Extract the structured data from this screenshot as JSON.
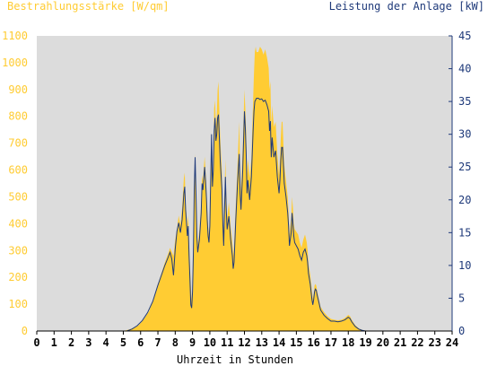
{
  "chart_data": {
    "type": "area",
    "left_axis": {
      "title": "Bestrahlungsstärke [W/qm]",
      "range": [
        0,
        1100
      ],
      "ticks": [
        0,
        100,
        200,
        300,
        400,
        500,
        600,
        700,
        800,
        900,
        1000,
        1100
      ],
      "color": "#FFCC33"
    },
    "right_axis": {
      "title": "Leistung der Anlage [kW]",
      "range": [
        0,
        45
      ],
      "ticks": [
        0,
        5,
        10,
        15,
        20,
        25,
        30,
        35,
        40,
        45
      ],
      "color": "#1F3A7A"
    },
    "x_axis": {
      "title": "Uhrzeit in Stunden",
      "range": [
        0,
        24
      ],
      "ticks": [
        0,
        1,
        2,
        3,
        4,
        5,
        6,
        7,
        8,
        9,
        10,
        11,
        12,
        13,
        14,
        15,
        16,
        17,
        18,
        19,
        20,
        21,
        22,
        23,
        24
      ]
    },
    "plot_background": "#DCDCDC",
    "series": [
      {
        "kind": "area",
        "axis": "left",
        "color": "#FFCC33",
        "points": [
          [
            0,
            0
          ],
          [
            5.0,
            0
          ],
          [
            5.3,
            5
          ],
          [
            5.6,
            12
          ],
          [
            5.9,
            22
          ],
          [
            6.2,
            45
          ],
          [
            6.5,
            75
          ],
          [
            6.8,
            130
          ],
          [
            7.0,
            175
          ],
          [
            7.2,
            215
          ],
          [
            7.4,
            255
          ],
          [
            7.6,
            290
          ],
          [
            7.7,
            310
          ],
          [
            7.9,
            280
          ],
          [
            8.0,
            340
          ],
          [
            8.1,
            380
          ],
          [
            8.2,
            430
          ],
          [
            8.3,
            395
          ],
          [
            8.4,
            460
          ],
          [
            8.5,
            570
          ],
          [
            8.55,
            590
          ],
          [
            8.6,
            480
          ],
          [
            8.7,
            390
          ],
          [
            8.75,
            430
          ],
          [
            8.8,
            330
          ],
          [
            8.85,
            250
          ],
          [
            8.9,
            170
          ],
          [
            8.95,
            110
          ],
          [
            9.0,
            160
          ],
          [
            9.05,
            280
          ],
          [
            9.1,
            520
          ],
          [
            9.15,
            660
          ],
          [
            9.2,
            530
          ],
          [
            9.25,
            390
          ],
          [
            9.3,
            320
          ],
          [
            9.4,
            380
          ],
          [
            9.5,
            470
          ],
          [
            9.55,
            580
          ],
          [
            9.6,
            560
          ],
          [
            9.7,
            650
          ],
          [
            9.75,
            600
          ],
          [
            9.8,
            540
          ],
          [
            9.85,
            450
          ],
          [
            9.9,
            390
          ],
          [
            9.95,
            360
          ],
          [
            10.0,
            420
          ],
          [
            10.05,
            590
          ],
          [
            10.1,
            680
          ],
          [
            10.15,
            540
          ],
          [
            10.2,
            600
          ],
          [
            10.25,
            830
          ],
          [
            10.3,
            860
          ],
          [
            10.35,
            770
          ],
          [
            10.4,
            800
          ],
          [
            10.45,
            900
          ],
          [
            10.5,
            930
          ],
          [
            10.55,
            820
          ],
          [
            10.6,
            720
          ],
          [
            10.7,
            590
          ],
          [
            10.75,
            450
          ],
          [
            10.8,
            360
          ],
          [
            10.85,
            510
          ],
          [
            10.9,
            640
          ],
          [
            10.95,
            500
          ],
          [
            11.0,
            420
          ],
          [
            11.1,
            480
          ],
          [
            11.2,
            390
          ],
          [
            11.3,
            330
          ],
          [
            11.35,
            280
          ],
          [
            11.4,
            320
          ],
          [
            11.5,
            470
          ],
          [
            11.6,
            620
          ],
          [
            11.7,
            780
          ],
          [
            11.75,
            600
          ],
          [
            11.8,
            520
          ],
          [
            11.9,
            680
          ],
          [
            12.0,
            900
          ],
          [
            12.05,
            830
          ],
          [
            12.1,
            740
          ],
          [
            12.15,
            580
          ],
          [
            12.2,
            640
          ],
          [
            12.3,
            570
          ],
          [
            12.4,
            640
          ],
          [
            12.45,
            750
          ],
          [
            12.5,
            860
          ],
          [
            12.55,
            960
          ],
          [
            12.6,
            1040
          ],
          [
            12.65,
            1060
          ],
          [
            12.7,
            1040
          ],
          [
            12.8,
            1040
          ],
          [
            12.9,
            1060
          ],
          [
            13.0,
            1050
          ],
          [
            13.1,
            1030
          ],
          [
            13.2,
            1050
          ],
          [
            13.3,
            1020
          ],
          [
            13.4,
            980
          ],
          [
            13.45,
            900
          ],
          [
            13.5,
            930
          ],
          [
            13.55,
            760
          ],
          [
            13.6,
            840
          ],
          [
            13.7,
            760
          ],
          [
            13.8,
            780
          ],
          [
            13.9,
            660
          ],
          [
            14.0,
            580
          ],
          [
            14.05,
            640
          ],
          [
            14.1,
            720
          ],
          [
            14.15,
            780
          ],
          [
            14.2,
            780
          ],
          [
            14.25,
            700
          ],
          [
            14.3,
            620
          ],
          [
            14.4,
            560
          ],
          [
            14.5,
            500
          ],
          [
            14.55,
            440
          ],
          [
            14.6,
            360
          ],
          [
            14.7,
            420
          ],
          [
            14.75,
            500
          ],
          [
            14.8,
            460
          ],
          [
            14.85,
            400
          ],
          [
            14.9,
            380
          ],
          [
            15.0,
            370
          ],
          [
            15.1,
            360
          ],
          [
            15.2,
            330
          ],
          [
            15.3,
            310
          ],
          [
            15.4,
            340
          ],
          [
            15.5,
            360
          ],
          [
            15.6,
            330
          ],
          [
            15.65,
            300
          ],
          [
            15.7,
            250
          ],
          [
            15.8,
            210
          ],
          [
            15.85,
            180
          ],
          [
            15.9,
            150
          ],
          [
            15.95,
            120
          ],
          [
            16.0,
            140
          ],
          [
            16.05,
            170
          ],
          [
            16.1,
            175
          ],
          [
            16.15,
            170
          ],
          [
            16.2,
            150
          ],
          [
            16.3,
            120
          ],
          [
            16.4,
            90
          ],
          [
            16.6,
            70
          ],
          [
            16.8,
            55
          ],
          [
            17.0,
            45
          ],
          [
            17.2,
            42
          ],
          [
            17.4,
            40
          ],
          [
            17.6,
            42
          ],
          [
            17.8,
            48
          ],
          [
            18.0,
            60
          ],
          [
            18.1,
            55
          ],
          [
            18.2,
            42
          ],
          [
            18.4,
            22
          ],
          [
            18.6,
            10
          ],
          [
            18.8,
            4
          ],
          [
            19.0,
            0
          ],
          [
            24,
            0
          ]
        ]
      },
      {
        "kind": "line",
        "axis": "right",
        "color": "#1F3A7A",
        "points": [
          [
            0,
            0
          ],
          [
            5.2,
            0
          ],
          [
            5.5,
            0.3
          ],
          [
            5.8,
            0.8
          ],
          [
            6.1,
            1.6
          ],
          [
            6.4,
            2.8
          ],
          [
            6.7,
            4.5
          ],
          [
            7.0,
            7.0
          ],
          [
            7.2,
            8.5
          ],
          [
            7.4,
            10.0
          ],
          [
            7.6,
            11.3
          ],
          [
            7.7,
            12.0
          ],
          [
            7.8,
            11.0
          ],
          [
            7.9,
            8.5
          ],
          [
            8.0,
            12.5
          ],
          [
            8.1,
            15.2
          ],
          [
            8.2,
            16.5
          ],
          [
            8.3,
            15.0
          ],
          [
            8.4,
            17.0
          ],
          [
            8.5,
            21.0
          ],
          [
            8.55,
            22.0
          ],
          [
            8.6,
            18.5
          ],
          [
            8.7,
            14.5
          ],
          [
            8.75,
            16.0
          ],
          [
            8.8,
            11.5
          ],
          [
            8.85,
            8.0
          ],
          [
            8.9,
            4.0
          ],
          [
            8.95,
            3.5
          ],
          [
            9.0,
            6.0
          ],
          [
            9.05,
            12.0
          ],
          [
            9.1,
            21.5
          ],
          [
            9.15,
            26.5
          ],
          [
            9.2,
            21.0
          ],
          [
            9.25,
            14.5
          ],
          [
            9.3,
            12.0
          ],
          [
            9.4,
            14.0
          ],
          [
            9.5,
            18.0
          ],
          [
            9.55,
            22.5
          ],
          [
            9.6,
            21.5
          ],
          [
            9.7,
            25.0
          ],
          [
            9.75,
            23.0
          ],
          [
            9.8,
            20.5
          ],
          [
            9.85,
            17.0
          ],
          [
            9.9,
            14.5
          ],
          [
            9.95,
            13.5
          ],
          [
            10.0,
            16.0
          ],
          [
            10.05,
            23.0
          ],
          [
            10.1,
            30.0
          ],
          [
            10.15,
            22.0
          ],
          [
            10.2,
            24.5
          ],
          [
            10.25,
            30.5
          ],
          [
            10.3,
            32.5
          ],
          [
            10.35,
            29.0
          ],
          [
            10.4,
            30.0
          ],
          [
            10.45,
            32.5
          ],
          [
            10.5,
            33.0
          ],
          [
            10.55,
            29.5
          ],
          [
            10.6,
            26.0
          ],
          [
            10.7,
            21.5
          ],
          [
            10.75,
            16.5
          ],
          [
            10.8,
            13.0
          ],
          [
            10.85,
            18.5
          ],
          [
            10.9,
            23.5
          ],
          [
            10.95,
            18.5
          ],
          [
            11.0,
            15.5
          ],
          [
            11.1,
            17.5
          ],
          [
            11.2,
            14.0
          ],
          [
            11.3,
            11.5
          ],
          [
            11.35,
            9.5
          ],
          [
            11.4,
            10.5
          ],
          [
            11.5,
            17.0
          ],
          [
            11.6,
            22.5
          ],
          [
            11.7,
            27.0
          ],
          [
            11.75,
            21.0
          ],
          [
            11.8,
            18.5
          ],
          [
            11.9,
            24.5
          ],
          [
            12.0,
            33.5
          ],
          [
            12.05,
            31.0
          ],
          [
            12.1,
            27.0
          ],
          [
            12.15,
            21.0
          ],
          [
            12.2,
            23.0
          ],
          [
            12.3,
            20.0
          ],
          [
            12.4,
            23.5
          ],
          [
            12.45,
            27.0
          ],
          [
            12.5,
            30.5
          ],
          [
            12.55,
            33.5
          ],
          [
            12.6,
            35.0
          ],
          [
            12.7,
            35.5
          ],
          [
            12.8,
            35.5
          ],
          [
            12.9,
            35.3
          ],
          [
            13.0,
            35.4
          ],
          [
            13.1,
            35.0
          ],
          [
            13.2,
            35.2
          ],
          [
            13.3,
            34.5
          ],
          [
            13.4,
            33.5
          ],
          [
            13.45,
            30.5
          ],
          [
            13.5,
            32.0
          ],
          [
            13.55,
            26.5
          ],
          [
            13.6,
            29.5
          ],
          [
            13.7,
            26.5
          ],
          [
            13.8,
            27.5
          ],
          [
            13.9,
            23.5
          ],
          [
            14.0,
            21.0
          ],
          [
            14.05,
            23.0
          ],
          [
            14.1,
            26.0
          ],
          [
            14.15,
            28.0
          ],
          [
            14.2,
            28.0
          ],
          [
            14.25,
            25.5
          ],
          [
            14.3,
            22.5
          ],
          [
            14.4,
            20.5
          ],
          [
            14.5,
            18.0
          ],
          [
            14.55,
            16.0
          ],
          [
            14.6,
            13.0
          ],
          [
            14.7,
            15.0
          ],
          [
            14.75,
            18.0
          ],
          [
            14.8,
            16.5
          ],
          [
            14.85,
            14.5
          ],
          [
            14.9,
            13.5
          ],
          [
            15.0,
            13.0
          ],
          [
            15.1,
            12.5
          ],
          [
            15.2,
            11.5
          ],
          [
            15.3,
            10.8
          ],
          [
            15.4,
            12.0
          ],
          [
            15.5,
            12.5
          ],
          [
            15.6,
            11.5
          ],
          [
            15.65,
            10.5
          ],
          [
            15.7,
            8.8
          ],
          [
            15.8,
            7.2
          ],
          [
            15.85,
            6.0
          ],
          [
            15.9,
            4.8
          ],
          [
            15.95,
            4.0
          ],
          [
            16.0,
            4.8
          ],
          [
            16.05,
            6.0
          ],
          [
            16.1,
            6.4
          ],
          [
            16.15,
            6.2
          ],
          [
            16.2,
            5.5
          ],
          [
            16.3,
            4.4
          ],
          [
            16.4,
            3.2
          ],
          [
            16.6,
            2.4
          ],
          [
            16.8,
            1.9
          ],
          [
            17.0,
            1.5
          ],
          [
            17.2,
            1.5
          ],
          [
            17.4,
            1.4
          ],
          [
            17.6,
            1.5
          ],
          [
            17.8,
            1.7
          ],
          [
            18.0,
            2.1
          ],
          [
            18.1,
            1.9
          ],
          [
            18.2,
            1.4
          ],
          [
            18.4,
            0.7
          ],
          [
            18.6,
            0.3
          ],
          [
            18.8,
            0.1
          ],
          [
            19.0,
            0
          ],
          [
            24,
            0
          ]
        ]
      }
    ]
  }
}
